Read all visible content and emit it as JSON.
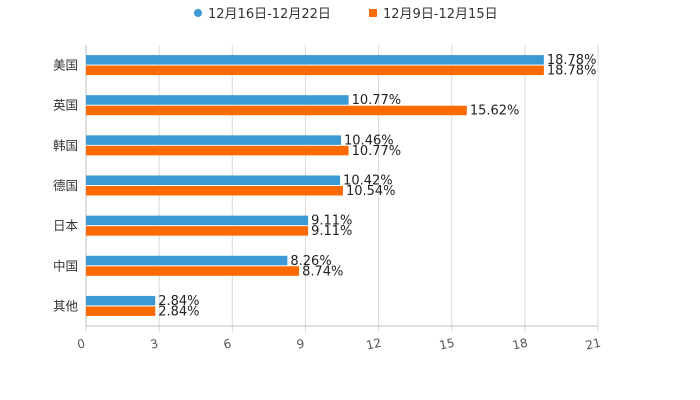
{
  "chart_data": {
    "type": "bar",
    "orientation": "horizontal",
    "categories": [
      "美国",
      "英国",
      "韩国",
      "德国",
      "日本",
      "中国",
      "其他"
    ],
    "series": [
      {
        "name": "12月16日-12月22日",
        "color": "#3b99d3",
        "values": [
          18.78,
          10.77,
          10.46,
          10.42,
          9.11,
          8.26,
          2.84
        ],
        "labels": [
          "18.78%",
          "10.77%",
          "10.46%",
          "10.42%",
          "9.11%",
          "8.26%",
          "2.84%"
        ]
      },
      {
        "name": "12月9日-12月15日",
        "color": "#ff6a00",
        "values": [
          18.78,
          15.62,
          10.77,
          10.54,
          9.11,
          8.74,
          2.84
        ],
        "labels": [
          "18.78%",
          "15.62%",
          "10.77%",
          "10.54%",
          "9.11%",
          "8.74%",
          "2.84%"
        ]
      }
    ],
    "x_ticks": [
      0,
      3,
      6,
      9,
      12,
      15,
      18,
      21
    ],
    "xlim": [
      0,
      21
    ],
    "title": "",
    "xlabel": "",
    "ylabel": "",
    "legend_position": "top-center"
  }
}
